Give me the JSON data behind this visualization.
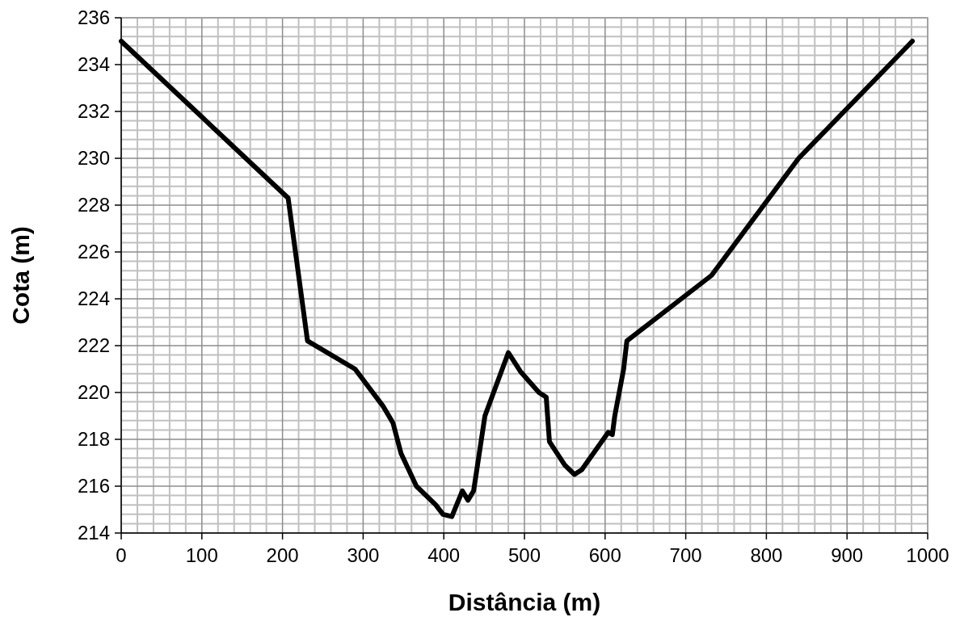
{
  "chart_data": {
    "type": "line",
    "xlabel": "Distância (m)",
    "ylabel": "Cota (m)",
    "xlim": [
      0,
      1000
    ],
    "ylim": [
      214,
      236
    ],
    "xticks": [
      0,
      100,
      200,
      300,
      400,
      500,
      600,
      700,
      800,
      900,
      1000
    ],
    "yticks": [
      214,
      216,
      218,
      220,
      222,
      224,
      226,
      228,
      230,
      232,
      234,
      236
    ],
    "grid": true,
    "marker": "none",
    "line_style": "solid",
    "series": [
      {
        "color": "#000000",
        "x": [
          0,
          207,
          231,
          290,
          325,
          337,
          347,
          366,
          390,
          399,
          410,
          423,
          430,
          437,
          451,
          480,
          495,
          518,
          527,
          531,
          550,
          562,
          571,
          604,
          609,
          612,
          623,
          627,
          732,
          840,
          981
        ],
        "values": [
          235,
          228.3,
          222.2,
          221,
          219.4,
          218.7,
          217.4,
          216,
          215.2,
          214.8,
          214.7,
          215.8,
          215.4,
          215.8,
          219,
          221.7,
          220.9,
          220,
          219.8,
          217.9,
          216.9,
          216.5,
          216.7,
          218.3,
          218.2,
          219,
          221,
          222.2,
          225,
          230,
          235
        ]
      }
    ]
  }
}
